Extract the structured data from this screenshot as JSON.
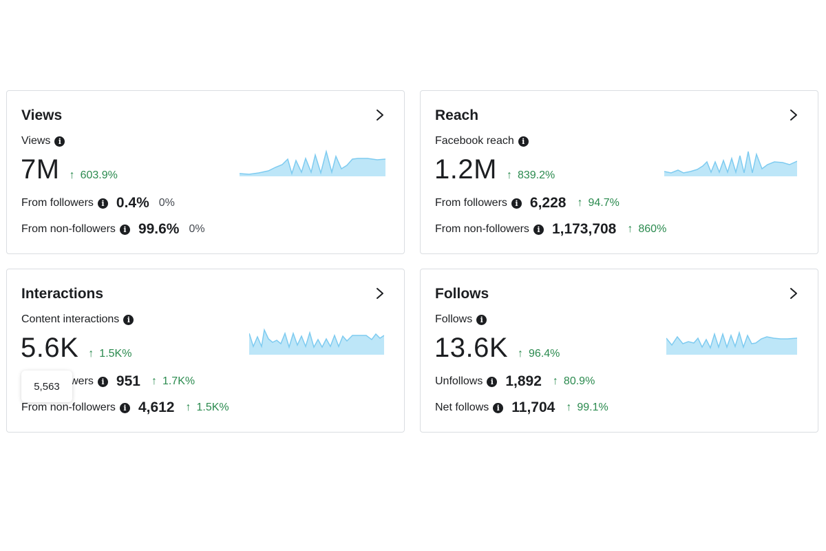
{
  "cards": {
    "views": {
      "title": "Views",
      "metric_label": "Views",
      "value": "7M",
      "change": "603.9%",
      "rows": [
        {
          "label": "From followers",
          "value": "0.4%",
          "change": "0%",
          "change_type": "neutral"
        },
        {
          "label": "From non-followers",
          "value": "99.6%",
          "change": "0%",
          "change_type": "neutral"
        }
      ]
    },
    "reach": {
      "title": "Reach",
      "metric_label": "Facebook reach",
      "value": "1.2M",
      "change": "839.2%",
      "rows": [
        {
          "label": "From followers",
          "value": "6,228",
          "change": "94.7%",
          "change_type": "up"
        },
        {
          "label": "From non-followers",
          "value": "1,173,708",
          "change": "860%",
          "change_type": "up"
        }
      ]
    },
    "interactions": {
      "title": "Interactions",
      "metric_label": "Content interactions",
      "value": "5.6K",
      "change": "1.5K%",
      "rows": [
        {
          "label": "From followers",
          "value": "951",
          "change": "1.7K%",
          "change_type": "up"
        },
        {
          "label": "From non-followers",
          "value": "4,612",
          "change": "1.5K%",
          "change_type": "up"
        }
      ]
    },
    "follows": {
      "title": "Follows",
      "metric_label": "Follows",
      "value": "13.6K",
      "change": "96.4%",
      "rows": [
        {
          "label": "Unfollows",
          "value": "1,892",
          "change": "80.9%",
          "change_type": "up"
        },
        {
          "label": "Net follows",
          "value": "11,704",
          "change": "99.1%",
          "change_type": "up"
        }
      ]
    }
  },
  "tooltip": {
    "value": "5,563"
  },
  "icons": {
    "info": "info-icon",
    "chevron": "chevron-right-icon",
    "up_arrow": "arrow-up-icon"
  },
  "colors": {
    "positive": "#2a8a4e",
    "sparkline_fill": "#bde6f8",
    "sparkline_stroke": "#7ecbf0",
    "border": "#dadde1"
  }
}
